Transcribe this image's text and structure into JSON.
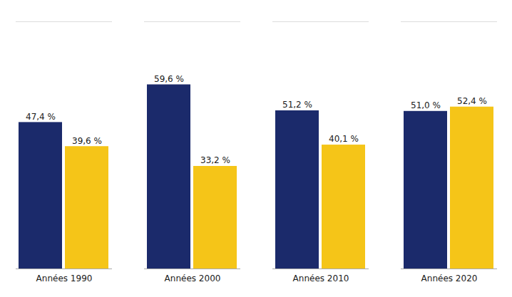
{
  "chart_data": {
    "type": "bar",
    "categories": [
      "Années 1990",
      "Années 2000",
      "Années 2010",
      "Années 2020"
    ],
    "series": [
      {
        "color": "#1B2A6B",
        "values": [
          47.4,
          59.6,
          51.2,
          51.0
        ],
        "value_labels": [
          "47,4 %",
          "59,6 %",
          "51,2 %",
          "51,0 %"
        ]
      },
      {
        "color": "#F5C518",
        "values": [
          39.6,
          33.2,
          40.1,
          52.4
        ],
        "value_labels": [
          "39,6 %",
          "33,2 %",
          "40,1 %",
          "52,4 %"
        ]
      }
    ],
    "ylim": [
      0,
      80
    ],
    "data_labels": true,
    "tick_labels": "x",
    "grid": false
  }
}
